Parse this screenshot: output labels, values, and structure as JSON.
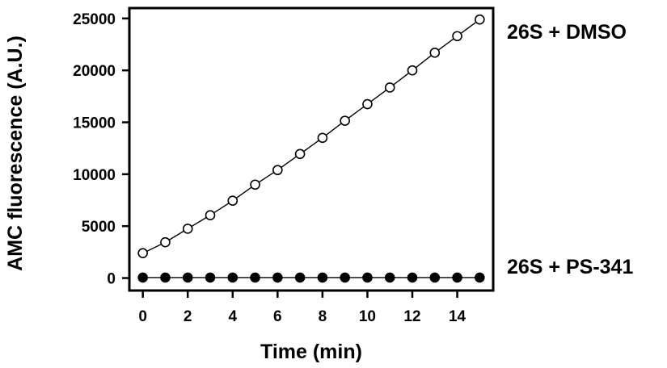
{
  "chart_data": {
    "type": "line",
    "title": "",
    "xlabel": "Time (min)",
    "ylabel": "AMC fluorescence (A.U.)",
    "xlim": [
      -0.6,
      15.6
    ],
    "ylim": [
      -1200,
      26000
    ],
    "xticks": [
      0,
      2,
      4,
      6,
      8,
      10,
      12,
      14
    ],
    "yticks": [
      0,
      5000,
      10000,
      15000,
      20000,
      25000
    ],
    "grid": false,
    "legend": "direct labels at right",
    "series": [
      {
        "name": "26S + DMSO",
        "marker": "open-circle",
        "color": "#000000",
        "x": [
          0,
          1,
          2,
          3,
          4,
          5,
          6,
          7,
          8,
          9,
          10,
          11,
          12,
          13,
          14,
          15
        ],
        "y": [
          2400,
          3450,
          4750,
          6050,
          7450,
          9000,
          10400,
          11950,
          13500,
          15150,
          16750,
          18350,
          20000,
          21700,
          23300,
          24900
        ]
      },
      {
        "name": "26S + PS-341",
        "marker": "filled-circle",
        "color": "#000000",
        "x": [
          0,
          1,
          2,
          3,
          4,
          5,
          6,
          7,
          8,
          9,
          10,
          11,
          12,
          13,
          14,
          15
        ],
        "y": [
          50,
          50,
          50,
          50,
          50,
          50,
          50,
          50,
          50,
          50,
          50,
          50,
          50,
          50,
          50,
          50
        ]
      }
    ]
  }
}
